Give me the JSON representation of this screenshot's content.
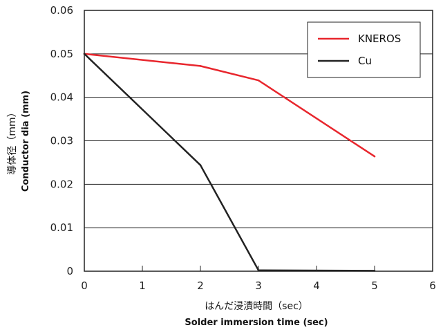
{
  "chart_data": {
    "type": "line",
    "xlabel": {
      "line1": "はんだ浸漬時間（sec）",
      "line2": "Solder immersion time (sec)"
    },
    "ylabel": {
      "line1": "導体径（mm）",
      "line2": "Conductor dia (mm)"
    },
    "xlim": [
      0,
      6
    ],
    "ylim": [
      0,
      0.06
    ],
    "xticks": [
      "0",
      "1",
      "2",
      "3",
      "4",
      "5",
      "6"
    ],
    "yticks": [
      "0",
      "0.01",
      "0.02",
      "0.03",
      "0.04",
      "0.05",
      "0.06"
    ],
    "grid": "horizontal",
    "legend_position": "top-right",
    "series": [
      {
        "name": "KNEROS",
        "color": "#e8262d",
        "x": [
          0,
          2,
          3,
          5
        ],
        "y": [
          0.05,
          0.0472,
          0.0439,
          0.0264
        ]
      },
      {
        "name": "Cu",
        "color": "#222222",
        "x": [
          0,
          2,
          3,
          5
        ],
        "y": [
          0.05,
          0.0244,
          0.0002,
          0.0001
        ]
      }
    ]
  }
}
